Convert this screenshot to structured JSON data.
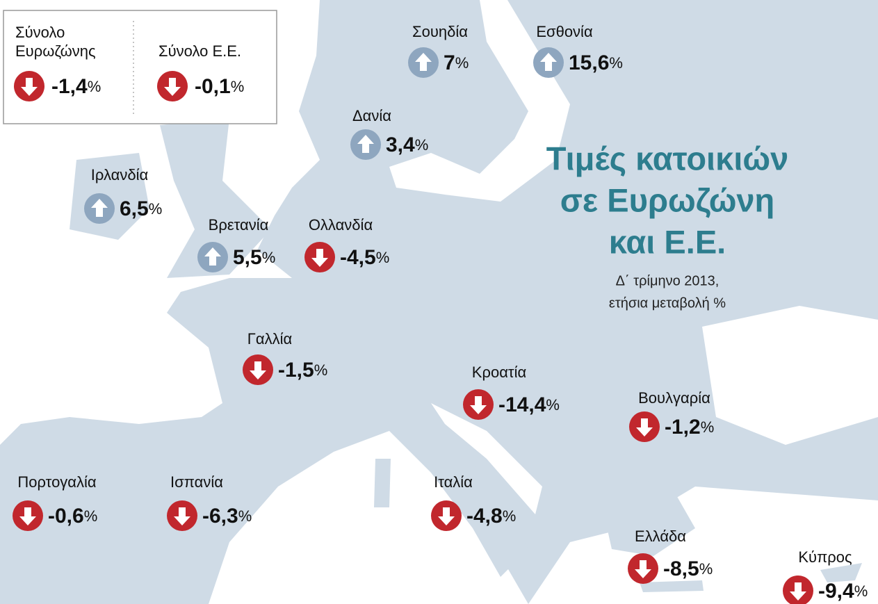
{
  "title": [
    "Τιμές κατοικιών",
    "σε Ευρωζώνη",
    "και Ε.Ε."
  ],
  "subtitle": [
    "Δ΄ τρίμηνο 2013,",
    "ετήσια μεταβολή %"
  ],
  "summary": [
    {
      "name": [
        "Σύνολο",
        "Ευρωζώνης"
      ],
      "value": "-1,4",
      "unit": "%",
      "direction": "down"
    },
    {
      "name": [
        "Σύνολο Ε.Ε."
      ],
      "value": "-0,1",
      "unit": "%",
      "direction": "down"
    }
  ],
  "countries": [
    {
      "name": "Σουηδία",
      "value": "7",
      "unit": "%",
      "direction": "up"
    },
    {
      "name": "Εσθονία",
      "value": "15,6",
      "unit": "%",
      "direction": "up"
    },
    {
      "name": "Δανία",
      "value": "3,4",
      "unit": "%",
      "direction": "up"
    },
    {
      "name": "Ιρλανδία",
      "value": "6,5",
      "unit": "%",
      "direction": "up"
    },
    {
      "name": "Βρετανία",
      "value": "5,5",
      "unit": "%",
      "direction": "up"
    },
    {
      "name": "Ολλανδία",
      "value": "-4,5",
      "unit": "%",
      "direction": "down"
    },
    {
      "name": "Γαλλία",
      "value": "-1,5",
      "unit": "%",
      "direction": "down"
    },
    {
      "name": "Κροατία",
      "value": "-14,4",
      "unit": "%",
      "direction": "down"
    },
    {
      "name": "Βουλγαρία",
      "value": "-1,2",
      "unit": "%",
      "direction": "down"
    },
    {
      "name": "Πορτογαλία",
      "value": "-0,6",
      "unit": "%",
      "direction": "down"
    },
    {
      "name": "Ισπανία",
      "value": "-6,3",
      "unit": "%",
      "direction": "down"
    },
    {
      "name": "Ιταλία",
      "value": "-4,8",
      "unit": "%",
      "direction": "down"
    },
    {
      "name": "Ελλάδα",
      "value": "-8,5",
      "unit": "%",
      "direction": "down"
    },
    {
      "name": "Κύπρος",
      "value": "-9,4",
      "unit": "%",
      "direction": "down"
    }
  ]
}
